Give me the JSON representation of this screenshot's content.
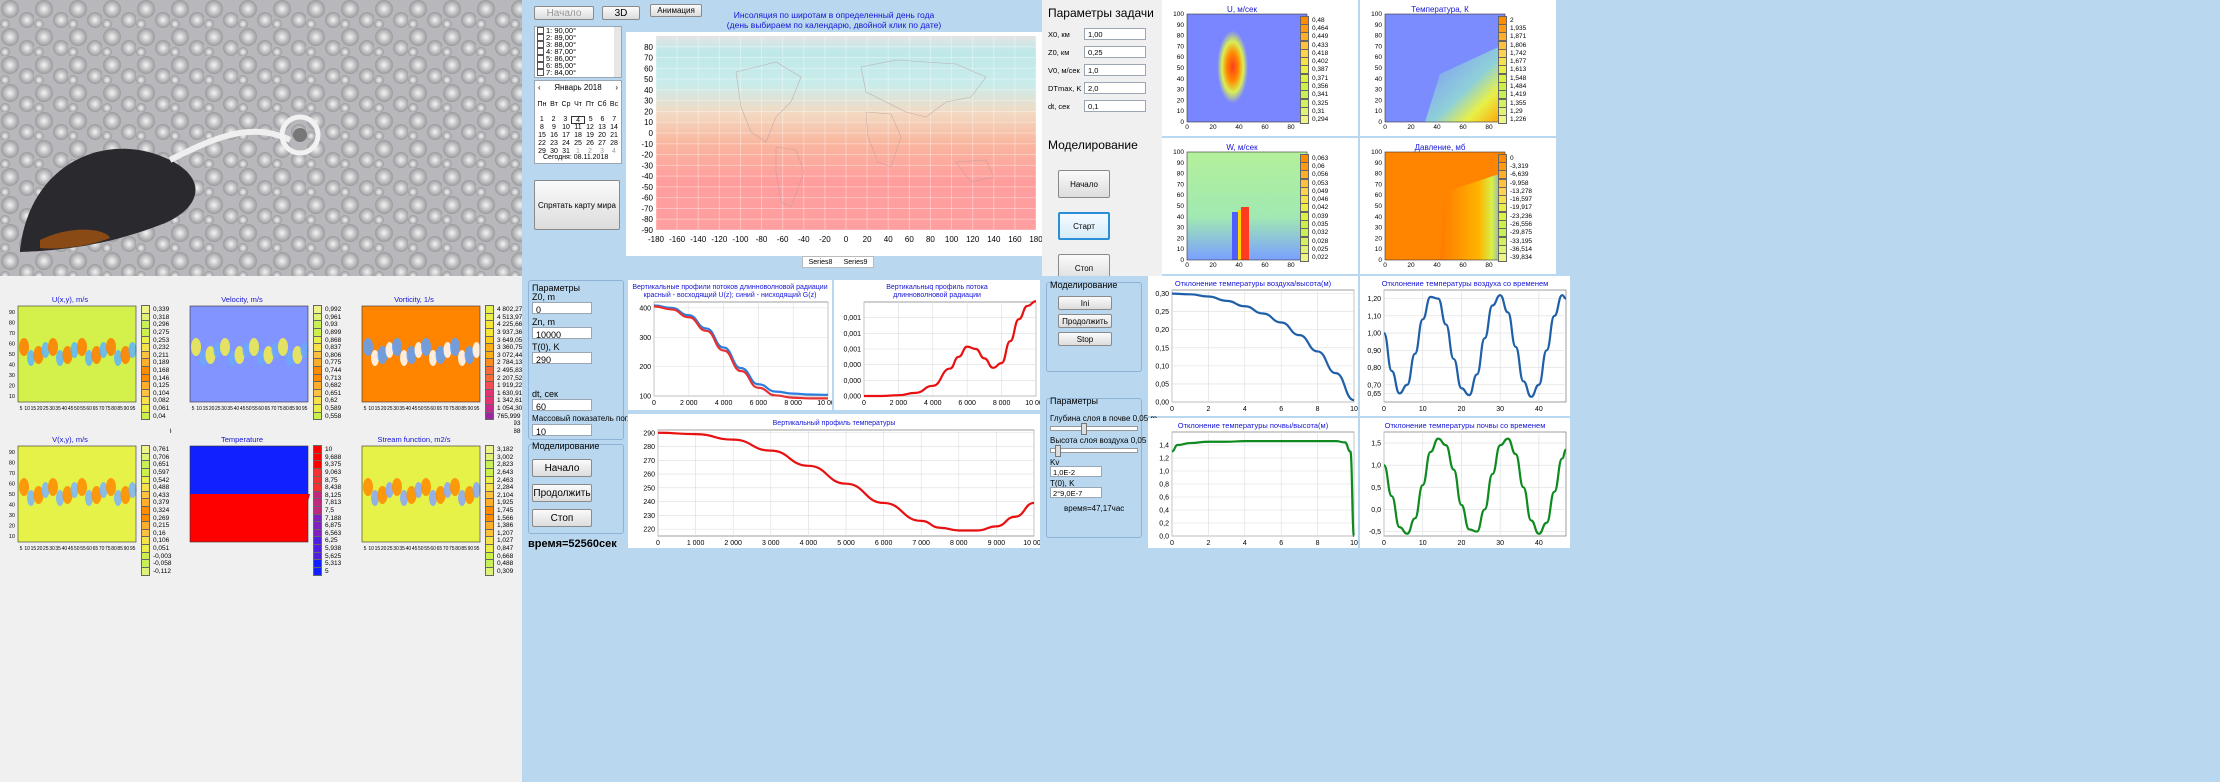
{
  "photo": {
    "alt": "satellite"
  },
  "insol": {
    "start_btn": "Начало",
    "btn3d": "3D",
    "anim_btn": "Анимация",
    "hide_btn": "Спрятать карту мира",
    "lat_items": [
      "1: 90,00°",
      "2: 89,00°",
      "3: 88,00°",
      "4: 87,00°",
      "5: 86,00°",
      "6: 85,00°",
      "7: 84,00°"
    ],
    "calendar": {
      "month": "Январь 2018",
      "weekdays": [
        "Пн",
        "Вт",
        "Ср",
        "Чт",
        "Пт",
        "Сб",
        "Вс"
      ],
      "rows": [
        [
          "",
          "",
          "",
          "",
          "",
          "",
          ""
        ],
        [
          "1",
          "2",
          "3",
          "4",
          "5",
          "6",
          "7"
        ],
        [
          "8",
          "9",
          "10",
          "11",
          "12",
          "13",
          "14"
        ],
        [
          "15",
          "16",
          "17",
          "18",
          "19",
          "20",
          "21"
        ],
        [
          "22",
          "23",
          "24",
          "25",
          "26",
          "27",
          "28"
        ],
        [
          "29",
          "30",
          "31",
          "1",
          "2",
          "3",
          "4"
        ]
      ],
      "today": "Сегодня: 08.11.2018"
    },
    "title1": "Инсоляция по широтам в  определенный день года",
    "title2": "(день выбираем по календарю, двойной клик по дате)",
    "legend": [
      "Series8",
      "Series9"
    ]
  },
  "params": {
    "title": "Параметры      задачи",
    "fields": [
      {
        "label": "X0, км",
        "value": "1,00"
      },
      {
        "label": "Z0, км",
        "value": "0,25"
      },
      {
        "label": "V0, м/сек",
        "value": "1,0"
      },
      {
        "label": "DTmax, K",
        "value": "2,0"
      },
      {
        "label": "dt, сек",
        "value": "0,1"
      }
    ],
    "model_title": "Моделирование",
    "b_start": "Начало",
    "b_run": "Старт",
    "b_stop": "Стоп"
  },
  "fields2d": [
    {
      "title": "U, м/сек",
      "colorbar": [
        "0,48",
        "0,464",
        "0,449",
        "0,433",
        "0,418",
        "0,402",
        "0,387",
        "0,371",
        "0,356",
        "0,341",
        "0,325",
        "0,31",
        "0,294"
      ]
    },
    {
      "title": "Температура, К",
      "colorbar": [
        "2",
        "1,935",
        "1,871",
        "1,806",
        "1,742",
        "1,677",
        "1,613",
        "1,548",
        "1,484",
        "1,419",
        "1,355",
        "1,29",
        "1,226"
      ]
    },
    {
      "title": "W, м/сек",
      "colorbar": [
        "0,063",
        "0,06",
        "0,056",
        "0,053",
        "0,049",
        "0,046",
        "0,042",
        "0,039",
        "0,035",
        "0,032",
        "0,028",
        "0,025",
        "0,022"
      ]
    },
    {
      "title": "Давление, мб",
      "colorbar": [
        "0",
        "-3,319",
        "-6,639",
        "-9,958",
        "-13,278",
        "-16,597",
        "-19,917",
        "-23,236",
        "-26,556",
        "-29,875",
        "-33,195",
        "-36,514",
        "-39,834"
      ]
    }
  ],
  "vortex": [
    {
      "title": "U(x,y), m/s",
      "colorbar": [
        "0,339",
        "0,318",
        "0,296",
        "0,275",
        "0,253",
        "0,232",
        "0,211",
        "0,189",
        "0,168",
        "0,146",
        "0,125",
        "0,104",
        "0,082",
        "0,061",
        "0,04",
        "0,018",
        "-0,003"
      ]
    },
    {
      "title": "Velocity, m/s",
      "colorbar": [
        "0,992",
        "0,961",
        "0,93",
        "0,899",
        "0,868",
        "0,837",
        "0,806",
        "0,775",
        "0,744",
        "0,713",
        "0,682",
        "0,651",
        "0,62",
        "0,589",
        "0,558",
        "0,527",
        "0,496"
      ]
    },
    {
      "title": "Vorticity, 1/s",
      "colorbar": [
        "4 802,279",
        "4 513,973",
        "4 225,667",
        "3 937,362",
        "3 649,056",
        "3 360,75",
        "3 072,444",
        "2 784,139",
        "2 495,833",
        "2 207,527",
        "1 919,222",
        "1 630,916",
        "1 342,61",
        "1 054,305",
        "765,999",
        "477,693",
        "189,388"
      ]
    },
    {
      "title": "V(x,y), m/s",
      "colorbar": [
        "0,761",
        "0,706",
        "0,651",
        "0,597",
        "0,542",
        "0,488",
        "0,433",
        "0,379",
        "0,324",
        "0,269",
        "0,215",
        "0,16",
        "0,106",
        "0,051",
        "-0,003",
        "-0,058",
        "-0,112"
      ]
    },
    {
      "title": "Temperature",
      "colorbar": [
        "10",
        "9,688",
        "9,375",
        "9,063",
        "8,75",
        "8,438",
        "8,125",
        "7,813",
        "7,5",
        "7,188",
        "6,875",
        "6,563",
        "6,25",
        "5,938",
        "5,625",
        "5,313",
        "5"
      ]
    },
    {
      "title": "Stream function, m2/s",
      "colorbar": [
        "3,182",
        "3,002",
        "2,823",
        "2,643",
        "2,463",
        "2,284",
        "2,104",
        "1,925",
        "1,745",
        "1,566",
        "1,386",
        "1,207",
        "1,027",
        "0,847",
        "0,668",
        "0,488",
        "0,309"
      ]
    }
  ],
  "vortex_axis": {
    "x": [
      "5",
      "10",
      "15",
      "20",
      "25",
      "30",
      "35",
      "40",
      "45",
      "50",
      "55",
      "60",
      "65",
      "70",
      "75",
      "80",
      "85",
      "90",
      "95"
    ],
    "y": [
      "90",
      "80",
      "70",
      "60",
      "50",
      "40",
      "30",
      "20",
      "10"
    ]
  },
  "rad": {
    "params_title": "Параметры",
    "f1": "Z0, m",
    "v1": "0",
    "f2": "Zn, m",
    "v2": "10000",
    "f3": "T(0), K",
    "v3": "290",
    "f4": "dt, сек",
    "v4": "60",
    "f5": "Массовый показатель погл",
    "v5": "10",
    "model_title": "Моделирование",
    "b1": "Начало",
    "b2": "Продолжить",
    "b3": "Стоп",
    "time": "время=52560сек",
    "c1_title1": "Вертикальные профили потоков длинноволновой радиации",
    "c1_title2": "красный - восходящий U(z); синий - нисходящий G(z)",
    "c2_title1": "Вертикальныq профиль потока",
    "c2_title2": "длинноволновой радиации",
    "c3_title": "Вертикальный профиль температуры"
  },
  "soil": {
    "model_title": "Моделирование",
    "b1": "Ini",
    "b2": "Продолжить",
    "b3": "Stop",
    "params_title": "Параметры",
    "l1": "Глубина слоя в почве 0,05 m",
    "l2": "Высота слоя воздуха 0,05 m",
    "l3": "Kv",
    "v3": "1,0E-2",
    "l4": "T(0), K",
    "v4": "2°9,0E-7",
    "time": "время=47,17час",
    "c1_title": "Отклонение температуры воздуха/высота(м)",
    "c2_title": "Отклонение температуры воздуха со временем",
    "c3_title": "Отклонение температуры почвы/высота(м)",
    "c4_title": "Отклонение температуры почвы со временем"
  },
  "chart_data": [
    {
      "type": "line",
      "title": "Вертикальные профили потоков длинноволновой радиации",
      "xlim": [
        0,
        10000
      ],
      "ylim": [
        100,
        420
      ],
      "x": [
        0,
        1000,
        2000,
        3000,
        4000,
        5000,
        6000,
        7000,
        8000,
        9000,
        10000
      ],
      "series": [
        {
          "values": [
            408,
            400,
            375,
            330,
            265,
            195,
            140,
            115,
            108,
            105,
            104
          ]
        },
        {
          "values": [
            405,
            395,
            368,
            322,
            255,
            185,
            128,
            102,
            94,
            92,
            92
          ]
        }
      ]
    },
    {
      "type": "line",
      "title": "Вертикальныq профиль потока длинноволновой радиации",
      "xlim": [
        0,
        10000
      ],
      "ylim": [
        0,
        0.0012
      ],
      "x": [
        0,
        1000,
        2000,
        3000,
        4000,
        5000,
        5500,
        6000,
        6500,
        7000,
        7500,
        8000,
        8500,
        9000,
        9500,
        10000
      ],
      "series": [
        {
          "values": [
            0,
            0,
            1e-05,
            4e-05,
            0.00013,
            0.00035,
            0.0005,
            0.00063,
            0.0006,
            0.00048,
            0.00036,
            0.00042,
            0.0007,
            0.00098,
            0.00115,
            0.00121
          ]
        }
      ]
    },
    {
      "type": "line",
      "title": "Вертикальный профиль температуры",
      "xlim": [
        0,
        10000
      ],
      "ylim": [
        215,
        292
      ],
      "x": [
        0,
        1000,
        2000,
        3000,
        4000,
        5000,
        6000,
        7000,
        7500,
        8000,
        8500,
        9000,
        9500,
        10000
      ],
      "series": [
        {
          "values": [
            290,
            289,
            285,
            277,
            266,
            253,
            239,
            226,
            221,
            219,
            219,
            222,
            229,
            239
          ]
        }
      ]
    },
    {
      "type": "line",
      "title": "Отклонение температуры воздуха/высота(м)",
      "xlim": [
        0,
        10
      ],
      "ylim": [
        0,
        0.31
      ],
      "x": [
        0,
        1,
        2,
        3,
        4,
        5,
        6,
        7,
        8,
        9,
        10
      ],
      "series": [
        {
          "values": [
            0.3,
            0.298,
            0.292,
            0.28,
            0.265,
            0.245,
            0.22,
            0.185,
            0.14,
            0.08,
            0.005
          ]
        }
      ]
    },
    {
      "type": "line",
      "title": "Отклонение температуры воздуха со временем",
      "xlim": [
        0,
        47
      ],
      "ylim": [
        0.6,
        1.25
      ],
      "x": [
        0,
        2,
        4,
        6,
        8,
        10,
        12,
        14,
        16,
        18,
        20,
        22,
        24,
        26,
        28,
        30,
        32,
        34,
        36,
        38,
        40,
        42,
        44,
        46,
        47
      ],
      "series": [
        {
          "values": [
            1,
            0.78,
            0.65,
            0.7,
            0.88,
            1.08,
            1.21,
            1.2,
            1.05,
            0.85,
            0.68,
            0.64,
            0.76,
            0.97,
            1.16,
            1.22,
            1.12,
            0.92,
            0.72,
            0.63,
            0.7,
            0.9,
            1.1,
            1.22,
            1.2
          ]
        }
      ]
    },
    {
      "type": "line",
      "title": "Отклонение температуры почвы/высота(м)",
      "xlim": [
        0,
        10
      ],
      "ylim": [
        0,
        1.6
      ],
      "x": [
        0,
        0.3,
        1,
        2,
        3,
        4,
        5,
        6,
        7,
        8,
        9,
        9.5,
        9.8,
        10
      ],
      "series": [
        {
          "values": [
            1.3,
            1.4,
            1.43,
            1.45,
            1.45,
            1.46,
            1.46,
            1.46,
            1.46,
            1.46,
            1.46,
            1.44,
            1.3,
            0
          ]
        }
      ]
    },
    {
      "type": "line",
      "title": "Отклонение температуры почвы со временем",
      "xlim": [
        0,
        47
      ],
      "ylim": [
        -0.6,
        1.75
      ],
      "x": [
        0,
        2,
        4,
        6,
        8,
        10,
        12,
        14,
        16,
        18,
        20,
        22,
        24,
        26,
        28,
        30,
        32,
        34,
        36,
        38,
        40,
        42,
        44,
        46,
        47
      ],
      "series": [
        {
          "values": [
            1,
            0.3,
            -0.4,
            -0.55,
            -0.2,
            0.55,
            1.3,
            1.6,
            1.45,
            0.9,
            0.1,
            -0.45,
            -0.5,
            0,
            0.8,
            1.45,
            1.6,
            1.25,
            0.5,
            -0.25,
            -0.55,
            -0.3,
            0.4,
            1.15,
            1.35
          ]
        }
      ]
    }
  ]
}
